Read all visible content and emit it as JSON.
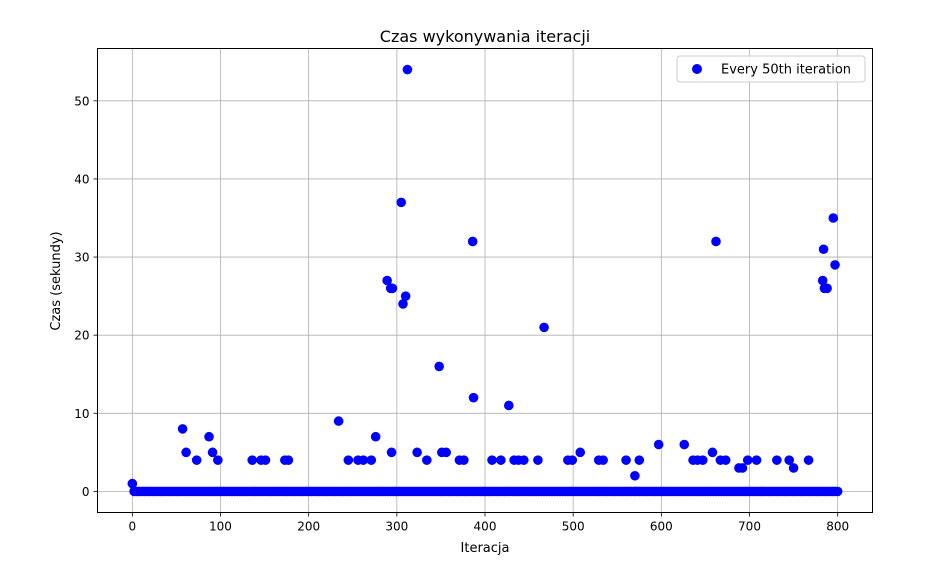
{
  "chart_data": {
    "type": "scatter",
    "title": "Czas wykonywania iteracji",
    "xlabel": "Iteracja",
    "ylabel": "Czas (sekundy)",
    "xlim": [
      -39.5,
      839.5
    ],
    "ylim": [
      -2.7,
      56.7
    ],
    "xticks": [
      0,
      100,
      200,
      300,
      400,
      500,
      600,
      700,
      800
    ],
    "yticks": [
      0,
      10,
      20,
      30,
      40,
      50
    ],
    "grid": true,
    "legend_position": "top-right",
    "series": [
      {
        "name": "Every 50th iteration",
        "color": "#0000ff",
        "marker": "circle",
        "zero_points": {
          "from": 2,
          "to": 800,
          "step": 3,
          "y": 0
        },
        "points": [
          [
            0,
            1
          ],
          [
            57,
            8
          ],
          [
            61,
            5
          ],
          [
            73,
            4
          ],
          [
            87,
            7
          ],
          [
            91,
            5
          ],
          [
            97,
            4
          ],
          [
            136,
            4
          ],
          [
            146,
            4
          ],
          [
            151,
            4
          ],
          [
            173,
            4
          ],
          [
            177,
            4
          ],
          [
            234,
            9
          ],
          [
            245,
            4
          ],
          [
            256,
            4
          ],
          [
            262,
            4
          ],
          [
            271,
            4
          ],
          [
            276,
            7
          ],
          [
            289,
            27
          ],
          [
            293,
            26
          ],
          [
            294,
            5
          ],
          [
            295,
            26
          ],
          [
            305,
            37
          ],
          [
            307,
            24
          ],
          [
            310,
            25
          ],
          [
            312,
            54
          ],
          [
            323,
            5
          ],
          [
            334,
            4
          ],
          [
            348,
            16
          ],
          [
            351,
            5
          ],
          [
            356,
            5
          ],
          [
            371,
            4
          ],
          [
            376,
            4
          ],
          [
            386,
            32
          ],
          [
            387,
            12
          ],
          [
            408,
            4
          ],
          [
            418,
            4
          ],
          [
            427,
            11
          ],
          [
            433,
            4
          ],
          [
            438,
            4
          ],
          [
            444,
            4
          ],
          [
            460,
            4
          ],
          [
            467,
            21
          ],
          [
            494,
            4
          ],
          [
            499,
            4
          ],
          [
            508,
            5
          ],
          [
            529,
            4
          ],
          [
            534,
            4
          ],
          [
            560,
            4
          ],
          [
            570,
            2
          ],
          [
            575,
            4
          ],
          [
            597,
            6
          ],
          [
            626,
            6
          ],
          [
            636,
            4
          ],
          [
            641,
            4
          ],
          [
            647,
            4
          ],
          [
            658,
            5
          ],
          [
            662,
            32
          ],
          [
            667,
            4
          ],
          [
            673,
            4
          ],
          [
            688,
            3
          ],
          [
            692,
            3
          ],
          [
            698,
            4
          ],
          [
            708,
            4
          ],
          [
            731,
            4
          ],
          [
            745,
            4
          ],
          [
            750,
            3
          ],
          [
            767,
            4
          ],
          [
            783,
            27
          ],
          [
            784,
            31
          ],
          [
            785,
            26
          ],
          [
            788,
            26
          ],
          [
            795,
            35
          ],
          [
            797,
            29
          ]
        ]
      }
    ]
  }
}
